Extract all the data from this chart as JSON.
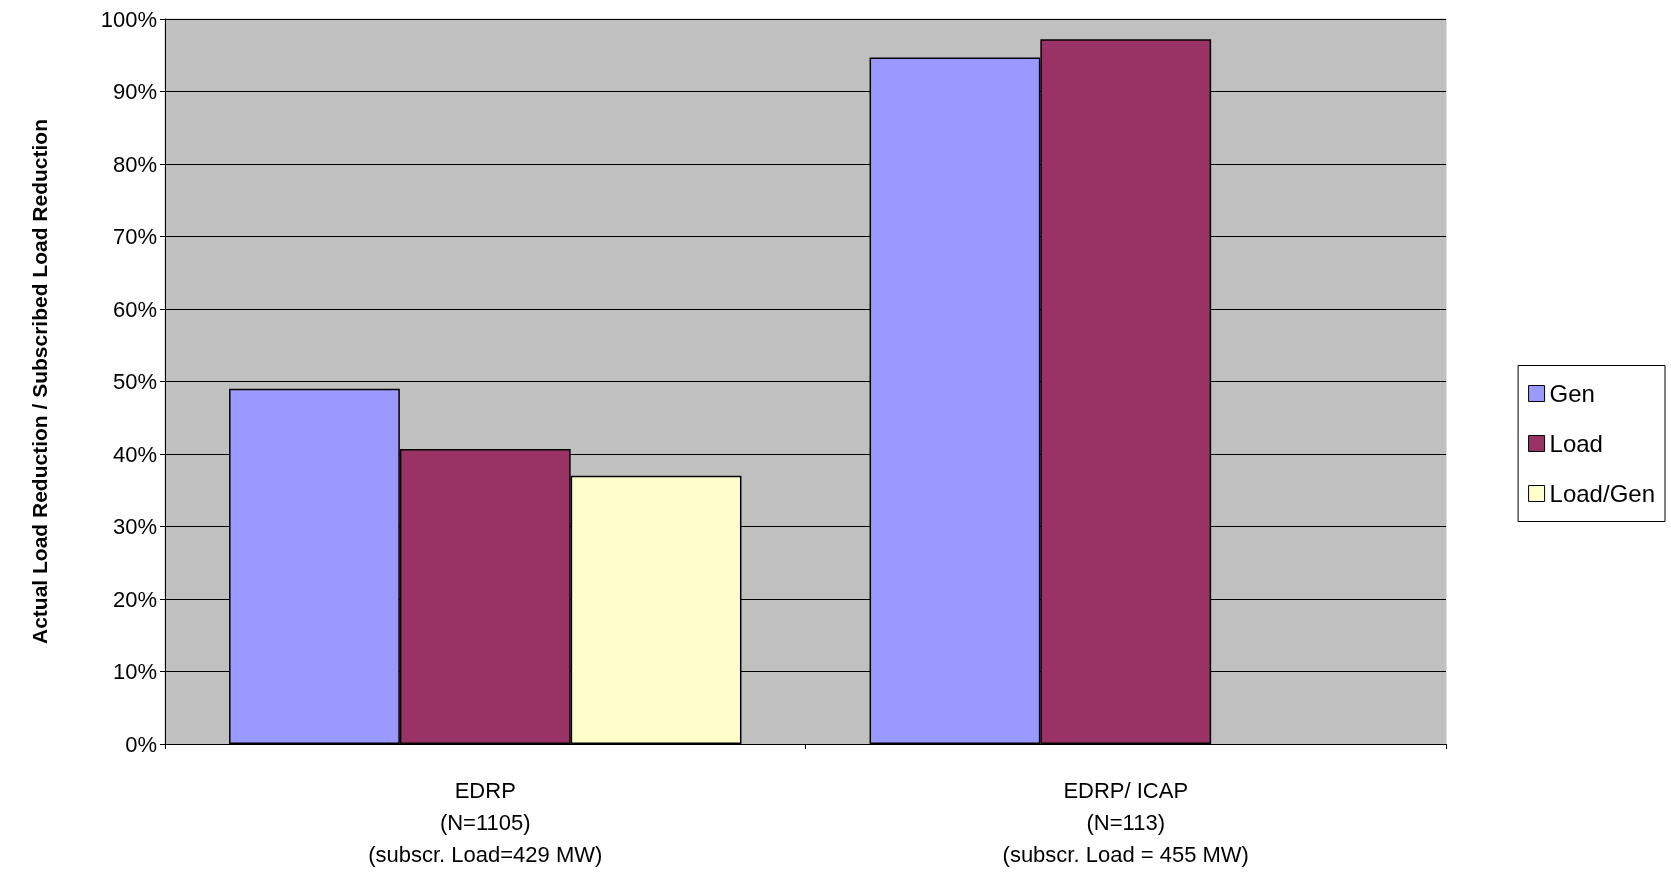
{
  "chart_data": {
    "type": "bar",
    "ylabel": "Actual Load Reduction / Subscribed Load Reduction",
    "categories": [
      "EDRP\n(N=1105)\n(subscr. Load=429 MW)",
      "EDRP/ ICAP\n(N=113)\n(subscr. Load = 455 MW)"
    ],
    "series": [
      {
        "name": "Gen",
        "color": "#9999ff",
        "values": [
          49,
          94.7
        ]
      },
      {
        "name": "Load",
        "color": "#993366",
        "values": [
          40.7,
          97.2
        ]
      },
      {
        "name": "Load/Gen",
        "color": "#ffffcc",
        "values": [
          37,
          null
        ]
      }
    ],
    "ylim": [
      0,
      100
    ],
    "yticks": [
      {
        "value": 0,
        "label": "0%"
      },
      {
        "value": 10,
        "label": "10%"
      },
      {
        "value": 20,
        "label": "20%"
      },
      {
        "value": 30,
        "label": "30%"
      },
      {
        "value": 40,
        "label": "40%"
      },
      {
        "value": 50,
        "label": "50%"
      },
      {
        "value": 60,
        "label": "60%"
      },
      {
        "value": 70,
        "label": "70%"
      },
      {
        "value": 80,
        "label": "80%"
      },
      {
        "value": 90,
        "label": "90%"
      },
      {
        "value": 100,
        "label": "100%"
      }
    ],
    "grid": "y",
    "legend": "right"
  }
}
